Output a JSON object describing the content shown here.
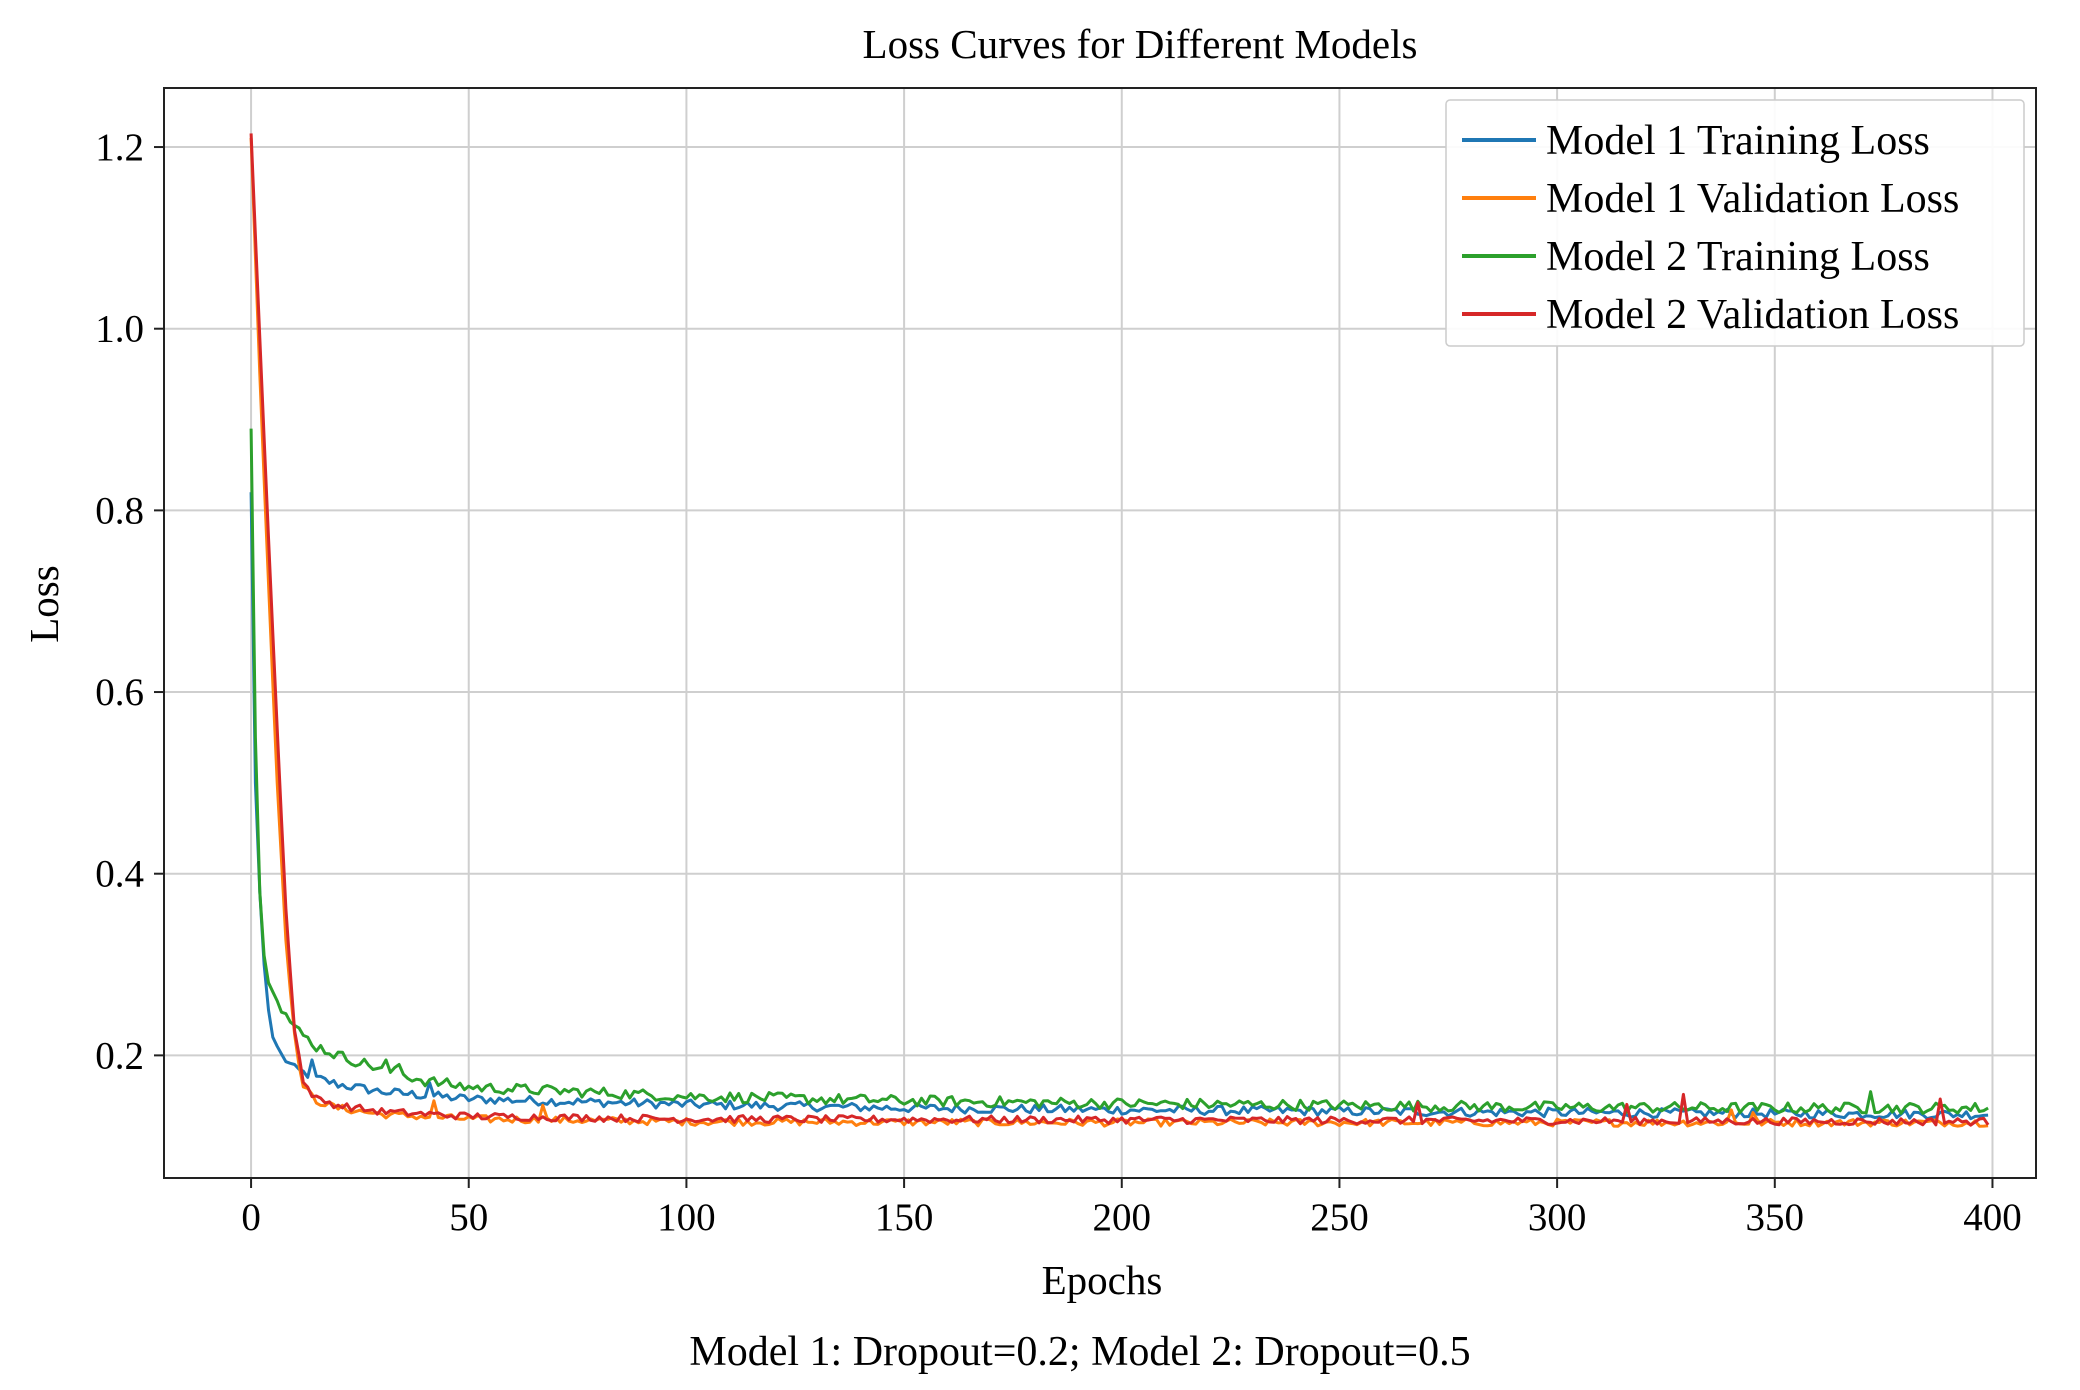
{
  "chart_data": {
    "type": "line",
    "title": "Loss Curves for Different Models",
    "xlabel": "Epochs",
    "ylabel": "Loss",
    "caption": "Model 1: Dropout=0.2; Model 2: Dropout=0.5",
    "xlim": [
      -20,
      410
    ],
    "ylim": [
      0.065,
      1.265
    ],
    "xticks": [
      0,
      50,
      100,
      150,
      200,
      250,
      300,
      350,
      400
    ],
    "xtick_labels": [
      "0",
      "50",
      "100",
      "150",
      "200",
      "250",
      "300",
      "350",
      "400"
    ],
    "yticks": [
      0.2,
      0.4,
      0.6,
      0.8,
      1.0,
      1.2
    ],
    "ytick_labels": [
      "0.2",
      "0.4",
      "0.6",
      "0.8",
      "1.0",
      "1.2"
    ],
    "grid": true,
    "legend_position": "top-right",
    "epochs": 400,
    "series": [
      {
        "name": "Model 1 Training Loss",
        "color": "#1f77b4",
        "keypoints": [
          [
            0,
            0.82
          ],
          [
            1,
            0.5
          ],
          [
            2,
            0.38
          ],
          [
            3,
            0.3
          ],
          [
            4,
            0.25
          ],
          [
            5,
            0.22
          ],
          [
            7,
            0.2
          ],
          [
            10,
            0.185
          ],
          [
            15,
            0.175
          ],
          [
            20,
            0.168
          ],
          [
            30,
            0.16
          ],
          [
            50,
            0.152
          ],
          [
            100,
            0.146
          ],
          [
            150,
            0.142
          ],
          [
            200,
            0.14
          ],
          [
            300,
            0.137
          ],
          [
            400,
            0.135
          ]
        ],
        "noise": 0.005,
        "spikes": [
          [
            14,
            0.195
          ],
          [
            41,
            0.17
          ]
        ]
      },
      {
        "name": "Model 1 Validation Loss",
        "color": "#ff7f0e",
        "keypoints": [
          [
            0,
            1.21
          ],
          [
            2,
            0.95
          ],
          [
            4,
            0.72
          ],
          [
            6,
            0.5
          ],
          [
            8,
            0.33
          ],
          [
            10,
            0.22
          ],
          [
            12,
            0.165
          ],
          [
            15,
            0.15
          ],
          [
            20,
            0.142
          ],
          [
            30,
            0.135
          ],
          [
            50,
            0.13
          ],
          [
            100,
            0.127
          ],
          [
            200,
            0.126
          ],
          [
            300,
            0.126
          ],
          [
            400,
            0.126
          ]
        ],
        "noise": 0.004,
        "spikes": [
          [
            42,
            0.15
          ],
          [
            67,
            0.145
          ],
          [
            340,
            0.14
          ],
          [
            345,
            0.137
          ]
        ]
      },
      {
        "name": "Model 2 Training Loss",
        "color": "#2ca02c",
        "keypoints": [
          [
            0,
            0.89
          ],
          [
            1,
            0.55
          ],
          [
            2,
            0.38
          ],
          [
            3,
            0.31
          ],
          [
            4,
            0.28
          ],
          [
            6,
            0.26
          ],
          [
            8,
            0.245
          ],
          [
            10,
            0.23
          ],
          [
            15,
            0.21
          ],
          [
            20,
            0.2
          ],
          [
            30,
            0.185
          ],
          [
            40,
            0.172
          ],
          [
            50,
            0.165
          ],
          [
            75,
            0.16
          ],
          [
            100,
            0.155
          ],
          [
            150,
            0.15
          ],
          [
            200,
            0.147
          ],
          [
            250,
            0.145
          ],
          [
            300,
            0.143
          ],
          [
            350,
            0.142
          ],
          [
            400,
            0.142
          ]
        ],
        "noise": 0.006,
        "spikes": [
          [
            31,
            0.195
          ],
          [
            34,
            0.19
          ],
          [
            372,
            0.16
          ]
        ]
      },
      {
        "name": "Model 2 Validation Loss",
        "color": "#d62728",
        "keypoints": [
          [
            0,
            1.215
          ],
          [
            2,
            0.99
          ],
          [
            4,
            0.77
          ],
          [
            6,
            0.56
          ],
          [
            8,
            0.36
          ],
          [
            10,
            0.23
          ],
          [
            12,
            0.17
          ],
          [
            15,
            0.152
          ],
          [
            20,
            0.145
          ],
          [
            30,
            0.138
          ],
          [
            50,
            0.133
          ],
          [
            100,
            0.13
          ],
          [
            200,
            0.129
          ],
          [
            300,
            0.128
          ],
          [
            400,
            0.127
          ]
        ],
        "noise": 0.004,
        "spikes": [
          [
            268,
            0.148
          ],
          [
            316,
            0.146
          ],
          [
            329,
            0.157
          ],
          [
            388,
            0.152
          ]
        ]
      }
    ]
  }
}
